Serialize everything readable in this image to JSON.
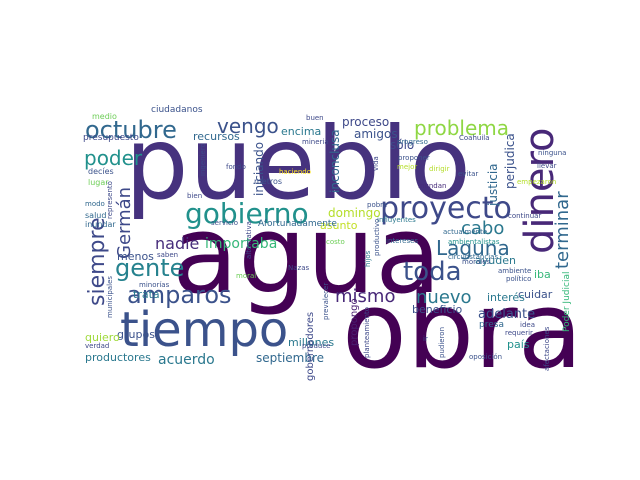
{
  "words": [
    {
      "text": "pueblo",
      "color": "#46327e"
    },
    {
      "text": "agua",
      "color": "#440154"
    },
    {
      "text": "obra",
      "color": "#440154"
    },
    {
      "text": "tiempo",
      "color": "#3b528b"
    },
    {
      "text": "dinero",
      "color": "#482878"
    },
    {
      "text": "proyecto",
      "color": "#3e4989"
    },
    {
      "text": "gobierno",
      "color": "#21918c"
    },
    {
      "text": "octubre",
      "color": "#31688e"
    },
    {
      "text": "amparos",
      "color": "#3b528b"
    },
    {
      "text": "gente",
      "color": "#26828e"
    },
    {
      "text": "problema",
      "color": "#8fd744"
    },
    {
      "text": "Laguna",
      "color": "#31688e"
    },
    {
      "text": "toda",
      "color": "#3b528b"
    },
    {
      "text": "terminar",
      "color": "#31688e"
    },
    {
      "text": "siempre",
      "color": "#3e4989"
    },
    {
      "text": "poder",
      "color": "#21918c"
    },
    {
      "text": "vengo",
      "color": "#3b528b"
    },
    {
      "text": "nuevo",
      "color": "#2a788e"
    },
    {
      "text": "mismo",
      "color": "#482878"
    },
    {
      "text": "cabo",
      "color": "#2a788e"
    },
    {
      "text": "Germán",
      "color": "#3e4989"
    },
    {
      "text": "nadie",
      "color": "#472d7b"
    },
    {
      "text": "importaba",
      "color": "#35b779"
    },
    {
      "text": "acuerdo",
      "color": "#2a788e"
    },
    {
      "text": "septiembre",
      "color": "#31688e"
    },
    {
      "text": "productores",
      "color": "#2a788e"
    },
    {
      "text": "adelante",
      "color": "#3b528b"
    },
    {
      "text": "domingo",
      "color": "#b5de2b"
    },
    {
      "text": "iniciando",
      "color": "#3b528b"
    },
    {
      "text": "inconclusa",
      "color": "#31688e"
    },
    {
      "text": "justicia",
      "color": "#31688e"
    },
    {
      "text": "perjudica",
      "color": "#3b528b"
    },
    {
      "text": "sólo",
      "color": "#3e4989"
    },
    {
      "text": "amigos",
      "color": "#3b528b"
    },
    {
      "text": "proceso",
      "color": "#3e4989"
    },
    {
      "text": "encima",
      "color": "#2a788e"
    },
    {
      "text": "recursos",
      "color": "#31688e"
    },
    {
      "text": "trata",
      "color": "#2a788e"
    },
    {
      "text": "grupos",
      "color": "#3b528b"
    },
    {
      "text": "menos",
      "color": "#3b528b"
    },
    {
      "text": "quiero",
      "color": "#9fda3a"
    },
    {
      "text": "millones",
      "color": "#2a788e"
    },
    {
      "text": "asunto",
      "color": "#c2df23"
    },
    {
      "text": "ayuden",
      "color": "#2a788e"
    },
    {
      "text": "cuidar",
      "color": "#3b528b"
    },
    {
      "text": "interés",
      "color": "#2a788e"
    },
    {
      "text": "beneficio",
      "color": "#3b528b"
    },
    {
      "text": "país",
      "color": "#21918c"
    },
    {
      "text": "iba",
      "color": "#35b779"
    },
    {
      "text": "gobernadores",
      "color": "#3e4989"
    },
    {
      "text": "Afortunadamente",
      "color": "#31688e"
    },
    {
      "text": "propongo",
      "color": "#481f70"
    },
    {
      "text": "presupuesto",
      "color": "#3e4989"
    },
    {
      "text": "ciudadanos",
      "color": "#3b528b"
    },
    {
      "text": "medio",
      "color": "#6ece58"
    },
    {
      "text": "decíes",
      "color": "#3b528b"
    },
    {
      "text": "lugar",
      "color": "#6ece58"
    },
    {
      "text": "salud",
      "color": "#31688e"
    },
    {
      "text": "inundar",
      "color": "#31688e"
    },
    {
      "text": "modo",
      "color": "#31688e"
    },
    {
      "text": "representó",
      "color": "#3e4989"
    },
    {
      "text": "ingeniero",
      "color": "#3e4989"
    },
    {
      "text": "fondo",
      "color": "#3e4989"
    },
    {
      "text": "metros",
      "color": "#3b528b"
    },
    {
      "text": "haciendo",
      "color": "#fde725"
    },
    {
      "text": "bien",
      "color": "#3e4989"
    },
    {
      "text": "servicio",
      "color": "#3b528b"
    },
    {
      "text": "buen",
      "color": "#3e4989"
    },
    {
      "text": "mineria",
      "color": "#3e4989"
    },
    {
      "text": "progreso",
      "color": "#31688e"
    },
    {
      "text": "proponer",
      "color": "#3b528b"
    },
    {
      "text": "Coahuila",
      "color": "#3e4989"
    },
    {
      "text": "ninguna",
      "color": "#3b528b"
    },
    {
      "text": "llevar",
      "color": "#3e4989"
    },
    {
      "text": "empezaron",
      "color": "#b5de2b"
    },
    {
      "text": "evitar",
      "color": "#3b528b"
    },
    {
      "text": "mejor",
      "color": "#b5de2b"
    },
    {
      "text": "vida",
      "color": "#3e4989"
    },
    {
      "text": "inundan",
      "color": "#472d7b"
    },
    {
      "text": "continuar",
      "color": "#3e4989"
    },
    {
      "text": "pobre",
      "color": "#3b528b"
    },
    {
      "text": "influyentes",
      "color": "#2a788e"
    },
    {
      "text": "actualmente",
      "color": "#31688e"
    },
    {
      "text": "ambientalistas",
      "color": "#21918c"
    },
    {
      "text": "circunstancias",
      "color": "#31688e"
    },
    {
      "text": "ambiente",
      "color": "#3b528b"
    },
    {
      "text": "morales",
      "color": "#3b528b"
    },
    {
      "text": "Poder Judicial",
      "color": "#35b779"
    },
    {
      "text": "intereses",
      "color": "#31688e"
    },
    {
      "text": "productivo",
      "color": "#3b528b"
    },
    {
      "text": "alternativa",
      "color": "#3e4989"
    },
    {
      "text": "hijos",
      "color": "#2a788e"
    },
    {
      "text": "costo",
      "color": "#6ece58"
    },
    {
      "text": "prevalecer",
      "color": "#3b528b"
    },
    {
      "text": "Nazas",
      "color": "#3e4989"
    },
    {
      "text": "produce",
      "color": "#3e4989"
    },
    {
      "text": "planteamiento",
      "color": "#3e4989"
    },
    {
      "text": "pudieron",
      "color": "#3b528b"
    },
    {
      "text": "presa",
      "color": "#31688e"
    },
    {
      "text": "idea",
      "color": "#3e4989"
    },
    {
      "text": "requerir",
      "color": "#3e4989"
    },
    {
      "text": "político",
      "color": "#3b528b"
    },
    {
      "text": "oposición",
      "color": "#3b528b"
    },
    {
      "text": "afectaciones",
      "color": "#3e4989"
    },
    {
      "text": "saben",
      "color": "#3e4989"
    },
    {
      "text": "municipales",
      "color": "#3b528b"
    },
    {
      "text": "minorías",
      "color": "#3b528b"
    },
    {
      "text": "verdad",
      "color": "#3e4989"
    },
    {
      "text": "moral",
      "color": "#6ece58"
    },
    {
      "text": "dirigir",
      "color": "#b5de2b"
    },
    {
      "text": "ir",
      "color": "#3e4989"
    }
  ]
}
